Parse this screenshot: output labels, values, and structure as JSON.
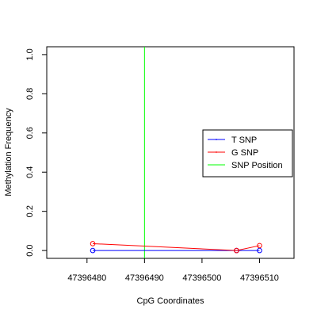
{
  "chart_data": {
    "type": "line",
    "title": "",
    "xlabel": "CpG Coordinates",
    "ylabel": "Methylation Frequency",
    "xlim": [
      47396473,
      47396516
    ],
    "ylim": [
      -0.04,
      1.04
    ],
    "x_ticks": [
      47396480,
      47396490,
      47396500,
      47396510
    ],
    "x_tick_labels": [
      "47396480",
      "47396490",
      "47396500",
      "47396510"
    ],
    "y_ticks": [
      0.0,
      0.2,
      0.4,
      0.6,
      0.8,
      1.0
    ],
    "y_tick_labels": [
      "0.0",
      "0.2",
      "0.4",
      "0.6",
      "0.8",
      "1.0"
    ],
    "grid": false,
    "legend_position": "right",
    "series": [
      {
        "name": "T SNP",
        "color": "#0000ff",
        "x": [
          47396481,
          47396506,
          47396510
        ],
        "y": [
          0.0,
          0.0,
          0.0
        ]
      },
      {
        "name": "G SNP",
        "color": "#ff0000",
        "x": [
          47396481,
          47396506,
          47396510
        ],
        "y": [
          0.035,
          0.0,
          0.025
        ]
      }
    ],
    "snp_position": {
      "name": "SNP Position",
      "color": "#00ff00",
      "x": 47396490
    }
  }
}
